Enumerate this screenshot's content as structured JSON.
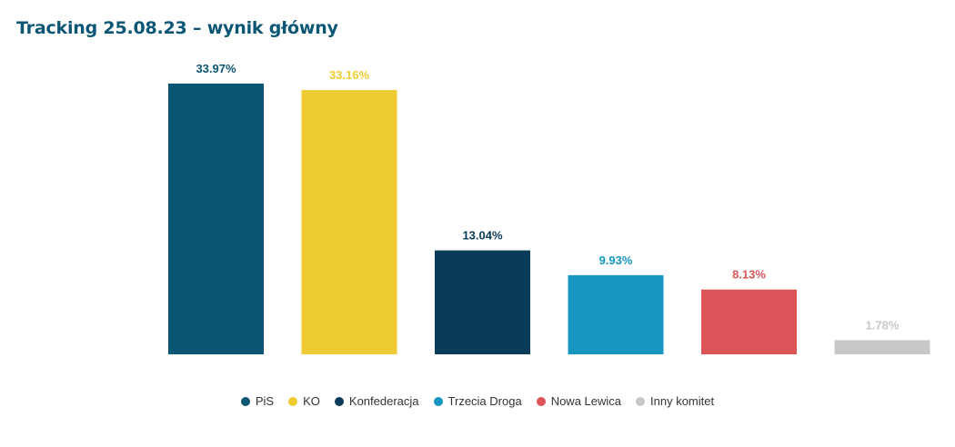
{
  "title": "Tracking 25.08.23 – wynik główny",
  "chart_data": {
    "type": "bar",
    "title": "Tracking 25.08.23 – wynik główny",
    "xlabel": "",
    "ylabel": "",
    "ylim": [
      0,
      35
    ],
    "grid": false,
    "legend_position": "bottom",
    "categories": [
      "PiS",
      "KO",
      "Konfederacja",
      "Trzecia Droga",
      "Nowa Lewica",
      "Inny komitet"
    ],
    "values": [
      33.97,
      33.16,
      13.04,
      9.93,
      8.13,
      1.78
    ],
    "value_labels": [
      "33.97%",
      "33.16%",
      "13.04%",
      "9.93%",
      "8.13%",
      "1.78%"
    ],
    "colors": [
      "#0c5675",
      "#eecb33",
      "#0a3b58",
      "#1796c2",
      "#db5558",
      "#c8c8c8"
    ],
    "label_colors": [
      "#0c5675",
      "#eecb33",
      "#0a3b58",
      "#1796c2",
      "#db5558",
      "#c8c8c8"
    ]
  }
}
